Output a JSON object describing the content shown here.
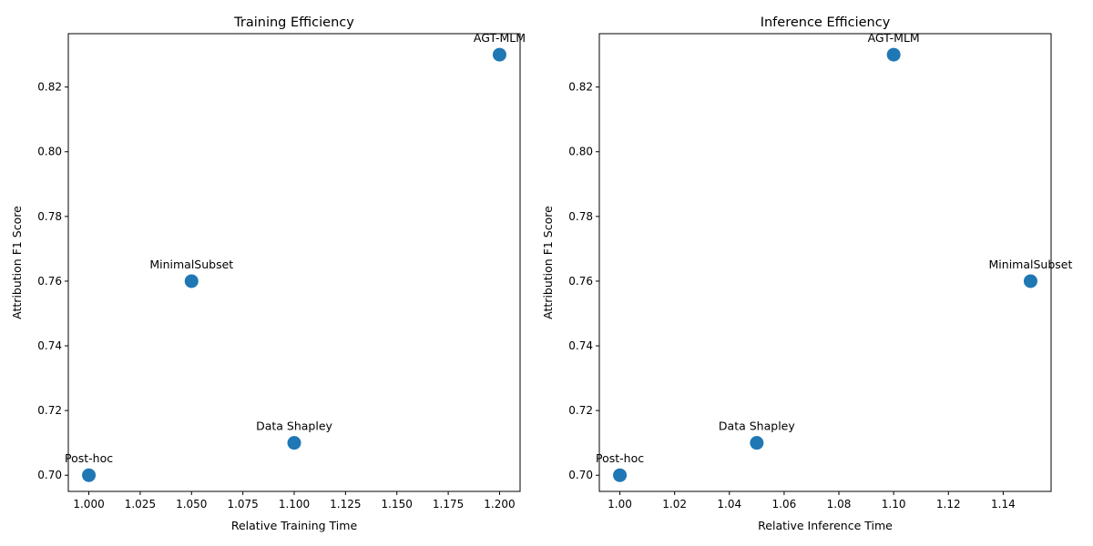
{
  "chart_data": [
    {
      "type": "scatter",
      "title": "Training Efficiency",
      "xlabel": "Relative Training Time",
      "ylabel": "Attribution F1 Score",
      "xlim": [
        0.99,
        1.21
      ],
      "ylim": [
        0.695,
        0.8365
      ],
      "xticks": [
        1.0,
        1.025,
        1.05,
        1.075,
        1.1,
        1.125,
        1.15,
        1.175,
        1.2
      ],
      "xtick_labels": [
        "1.000",
        "1.025",
        "1.050",
        "1.075",
        "1.100",
        "1.125",
        "1.150",
        "1.175",
        "1.200"
      ],
      "yticks": [
        0.7,
        0.72,
        0.74,
        0.76,
        0.78,
        0.8,
        0.82
      ],
      "ytick_labels": [
        "0.70",
        "0.72",
        "0.74",
        "0.76",
        "0.78",
        "0.80",
        "0.82"
      ],
      "points": [
        {
          "label": "Post-hoc",
          "x": 1.0,
          "y": 0.7
        },
        {
          "label": "MinimalSubset",
          "x": 1.05,
          "y": 0.76
        },
        {
          "label": "Data Shapley",
          "x": 1.1,
          "y": 0.71
        },
        {
          "label": "AGT-MLM",
          "x": 1.2,
          "y": 0.83
        }
      ],
      "color": "#1f77b4",
      "grid": false
    },
    {
      "type": "scatter",
      "title": "Inference Efficiency",
      "xlabel": "Relative Inference Time",
      "ylabel": "Attribution F1 Score",
      "xlim": [
        0.9925,
        1.1575
      ],
      "ylim": [
        0.695,
        0.8365
      ],
      "xticks": [
        1.0,
        1.02,
        1.04,
        1.06,
        1.08,
        1.1,
        1.12,
        1.14
      ],
      "xtick_labels": [
        "1.00",
        "1.02",
        "1.04",
        "1.06",
        "1.08",
        "1.10",
        "1.12",
        "1.14"
      ],
      "yticks": [
        0.7,
        0.72,
        0.74,
        0.76,
        0.78,
        0.8,
        0.82
      ],
      "ytick_labels": [
        "0.70",
        "0.72",
        "0.74",
        "0.76",
        "0.78",
        "0.80",
        "0.82"
      ],
      "points": [
        {
          "label": "Post-hoc",
          "x": 1.0,
          "y": 0.7
        },
        {
          "label": "Data Shapley",
          "x": 1.05,
          "y": 0.71
        },
        {
          "label": "AGT-MLM",
          "x": 1.1,
          "y": 0.83
        },
        {
          "label": "MinimalSubset",
          "x": 1.15,
          "y": 0.76
        }
      ],
      "color": "#1f77b4",
      "grid": false
    }
  ]
}
